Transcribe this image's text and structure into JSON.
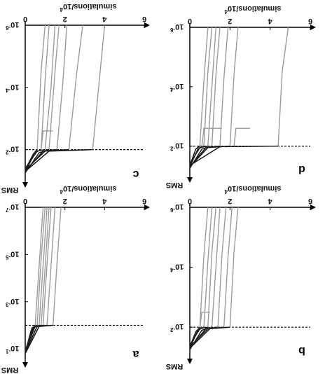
{
  "chart_data": [
    {
      "panel": "c",
      "type": "line",
      "xlabel": "simulations/10",
      "xlabel_exp": "4",
      "ylabel": "RMS",
      "xlim": [
        0,
        6
      ],
      "ylim": [
        1,
        6
      ],
      "x_ticks": [
        {
          "v": 0,
          "label": "0"
        },
        {
          "v": 2,
          "label": "2"
        },
        {
          "v": 4,
          "label": "4"
        },
        {
          "v": 6,
          "label": "6"
        }
      ],
      "y_ticks": [
        {
          "v": 6,
          "base": "10",
          "exp": "-6"
        },
        {
          "v": 4,
          "base": "10",
          "exp": "-4"
        },
        {
          "v": 2,
          "base": "10",
          "exp": "-2"
        }
      ],
      "threshold": 2,
      "series": [
        {
          "color": "#9a9a9a",
          "points": [
            [
              0,
              1.35
            ],
            [
              0.4,
              1.85
            ],
            [
              0.6,
              2.0
            ],
            [
              0.8,
              4.5
            ],
            [
              1.0,
              6.0
            ]
          ]
        },
        {
          "color": "#9a9a9a",
          "points": [
            [
              0,
              1.3
            ],
            [
              0.5,
              1.9
            ],
            [
              0.8,
              2.0
            ],
            [
              1.0,
              4.2
            ],
            [
              1.2,
              6.0
            ]
          ]
        },
        {
          "color": "#9a9a9a",
          "points": [
            [
              0,
              1.4
            ],
            [
              0.6,
              1.95
            ],
            [
              1.0,
              2.0
            ],
            [
              1.3,
              4.0
            ],
            [
              1.5,
              6.0
            ]
          ]
        },
        {
          "color": "#9a9a9a",
          "points": [
            [
              0,
              1.25
            ],
            [
              0.7,
              1.9
            ],
            [
              1.2,
              2.0
            ],
            [
              1.5,
              4.5
            ],
            [
              1.7,
              6.0
            ]
          ]
        },
        {
          "color": "#9a9a9a",
          "points": [
            [
              0,
              1.3
            ],
            [
              0.9,
              1.95
            ],
            [
              1.6,
              2.0
            ],
            [
              1.9,
              4.2
            ],
            [
              2.1,
              6.0
            ]
          ]
        },
        {
          "color": "#9a9a9a",
          "points": [
            [
              0,
              1.35
            ],
            [
              1.0,
              1.95
            ],
            [
              2.2,
              2.0
            ],
            [
              2.6,
              4.5
            ],
            [
              2.9,
              6.0
            ]
          ]
        },
        {
          "color": "#9a9a9a",
          "points": [
            [
              0,
              1.3
            ],
            [
              1.2,
              1.95
            ],
            [
              3.4,
              2.0
            ],
            [
              3.7,
              4.0
            ],
            [
              4.0,
              6.0
            ]
          ]
        },
        {
          "color": "#9a9a9a",
          "points": [
            [
              0.8,
              2.0
            ],
            [
              0.9,
              2.6
            ],
            [
              1.4,
              2.6
            ]
          ]
        }
      ]
    },
    {
      "panel": "d",
      "type": "line",
      "xlabel": "simulations/10",
      "xlabel_exp": "4",
      "ylabel": "RMS",
      "xlim": [
        0,
        6
      ],
      "ylim": [
        1,
        6
      ],
      "x_ticks": [
        {
          "v": 0,
          "label": "0"
        },
        {
          "v": 2,
          "label": "2"
        },
        {
          "v": 4,
          "label": "4"
        },
        {
          "v": 6,
          "label": "6"
        }
      ],
      "y_ticks": [
        {
          "v": 6,
          "base": "10",
          "exp": "-6"
        },
        {
          "v": 4,
          "base": "10",
          "exp": "-4"
        },
        {
          "v": 2,
          "base": "10",
          "exp": "-2"
        }
      ],
      "threshold": 2,
      "series": [
        {
          "color": "#9a9a9a",
          "points": [
            [
              0,
              1.35
            ],
            [
              0.3,
              1.9
            ],
            [
              0.5,
              2.0
            ],
            [
              0.7,
              4.2
            ],
            [
              0.9,
              6.0
            ]
          ]
        },
        {
          "color": "#9a9a9a",
          "points": [
            [
              0,
              1.3
            ],
            [
              0.4,
              1.9
            ],
            [
              0.7,
              2.0
            ],
            [
              0.9,
              4.5
            ],
            [
              1.1,
              6.0
            ]
          ]
        },
        {
          "color": "#9a9a9a",
          "points": [
            [
              0,
              1.4
            ],
            [
              0.5,
              1.95
            ],
            [
              0.9,
              2.0
            ],
            [
              1.1,
              4.0
            ],
            [
              1.3,
              6.0
            ]
          ]
        },
        {
          "color": "#9a9a9a",
          "points": [
            [
              0,
              1.25
            ],
            [
              0.6,
              1.9
            ],
            [
              1.1,
              2.0
            ],
            [
              1.3,
              4.4
            ],
            [
              1.5,
              6.0
            ]
          ]
        },
        {
          "color": "#9a9a9a",
          "points": [
            [
              0,
              1.3
            ],
            [
              0.8,
              1.95
            ],
            [
              1.5,
              2.0
            ],
            [
              1.7,
              4.3
            ],
            [
              1.9,
              6.0
            ]
          ]
        },
        {
          "color": "#9a9a9a",
          "points": [
            [
              0,
              1.3
            ],
            [
              0.9,
              1.95
            ],
            [
              2.0,
              2.0
            ],
            [
              2.2,
              4.4
            ],
            [
              2.4,
              6.0
            ]
          ]
        },
        {
          "color": "#9a9a9a",
          "points": [
            [
              0,
              1.35
            ],
            [
              1.5,
              1.98
            ],
            [
              4.4,
              2.0
            ],
            [
              4.6,
              4.5
            ],
            [
              4.9,
              6.0
            ]
          ]
        },
        {
          "color": "#9a9a9a",
          "points": [
            [
              0.6,
              2.0
            ],
            [
              0.7,
              2.6
            ],
            [
              1.6,
              2.6
            ]
          ]
        },
        {
          "color": "#9a9a9a",
          "points": [
            [
              2.2,
              2.0
            ],
            [
              2.3,
              2.6
            ],
            [
              3.0,
              2.6
            ]
          ]
        }
      ]
    },
    {
      "panel": "a",
      "type": "line",
      "xlabel": "simulations/10",
      "xlabel_exp": "4",
      "ylabel": "RMS",
      "xlim": [
        0,
        6
      ],
      "ylim": [
        0.5,
        7
      ],
      "x_ticks": [
        {
          "v": 0,
          "label": "0"
        },
        {
          "v": 2,
          "label": "2"
        },
        {
          "v": 4,
          "label": "4"
        },
        {
          "v": 6,
          "label": "6"
        }
      ],
      "y_ticks": [
        {
          "v": 7,
          "base": "10",
          "exp": "-7"
        },
        {
          "v": 5,
          "base": "10",
          "exp": "-5"
        },
        {
          "v": 3,
          "base": "10",
          "exp": "-3"
        },
        {
          "v": 1,
          "base": "10",
          "exp": "-1"
        }
      ],
      "threshold": 2,
      "series": [
        {
          "color": "#9a9a9a",
          "points": [
            [
              0,
              0.8
            ],
            [
              0.3,
              1.8
            ],
            [
              0.5,
              2.0
            ],
            [
              0.7,
              4.5
            ],
            [
              0.9,
              7.0
            ]
          ]
        },
        {
          "color": "#9a9a9a",
          "points": [
            [
              0,
              0.9
            ],
            [
              0.35,
              1.9
            ],
            [
              0.6,
              2.0
            ],
            [
              0.8,
              4.8
            ],
            [
              1.0,
              7.0
            ]
          ]
        },
        {
          "color": "#9a9a9a",
          "points": [
            [
              0,
              0.85
            ],
            [
              0.4,
              1.9
            ],
            [
              0.7,
              2.0
            ],
            [
              0.9,
              4.5
            ],
            [
              1.1,
              7.0
            ]
          ]
        },
        {
          "color": "#9a9a9a",
          "points": [
            [
              0,
              0.8
            ],
            [
              0.45,
              1.95
            ],
            [
              0.8,
              2.0
            ],
            [
              1.0,
              4.4
            ],
            [
              1.2,
              7.0
            ]
          ]
        },
        {
          "color": "#9a9a9a",
          "points": [
            [
              0,
              0.9
            ],
            [
              0.5,
              1.95
            ],
            [
              0.9,
              2.0
            ],
            [
              1.1,
              4.6
            ],
            [
              1.3,
              7.0
            ]
          ]
        },
        {
          "color": "#9a9a9a",
          "points": [
            [
              0,
              0.85
            ],
            [
              0.6,
              1.95
            ],
            [
              1.1,
              2.0
            ],
            [
              1.3,
              4.5
            ],
            [
              1.5,
              7.0
            ]
          ]
        },
        {
          "color": "#9a9a9a",
          "points": [
            [
              0,
              0.8
            ],
            [
              0.7,
              1.95
            ],
            [
              1.4,
              2.0
            ],
            [
              1.6,
              4.6
            ],
            [
              1.8,
              7.0
            ]
          ]
        }
      ]
    },
    {
      "panel": "b",
      "type": "line",
      "xlabel": "simulations/10",
      "xlabel_exp": "4",
      "ylabel": "RMS",
      "xlim": [
        0,
        6
      ],
      "ylim": [
        1,
        6
      ],
      "x_ticks": [
        {
          "v": 0,
          "label": "0"
        },
        {
          "v": 2,
          "label": "2"
        },
        {
          "v": 4,
          "label": "4"
        },
        {
          "v": 6,
          "label": "6"
        }
      ],
      "y_ticks": [
        {
          "v": 6,
          "base": "10",
          "exp": "-6"
        },
        {
          "v": 4,
          "base": "10",
          "exp": "-4"
        },
        {
          "v": 2,
          "base": "10",
          "exp": "-2"
        }
      ],
      "threshold": 2,
      "series": [
        {
          "color": "#9a9a9a",
          "points": [
            [
              0,
              1.35
            ],
            [
              0.3,
              1.85
            ],
            [
              0.5,
              2.0
            ],
            [
              0.7,
              4.4
            ],
            [
              0.9,
              6.0
            ]
          ]
        },
        {
          "color": "#9a9a9a",
          "points": [
            [
              0,
              1.3
            ],
            [
              0.4,
              1.9
            ],
            [
              0.7,
              2.0
            ],
            [
              0.9,
              4.2
            ],
            [
              1.1,
              6.0
            ]
          ]
        },
        {
          "color": "#9a9a9a",
          "points": [
            [
              0,
              1.4
            ],
            [
              0.5,
              1.95
            ],
            [
              0.9,
              2.0
            ],
            [
              1.1,
              4.5
            ],
            [
              1.3,
              6.0
            ]
          ]
        },
        {
          "color": "#9a9a9a",
          "points": [
            [
              0,
              1.25
            ],
            [
              0.6,
              1.9
            ],
            [
              1.1,
              2.0
            ],
            [
              1.3,
              4.0
            ],
            [
              1.5,
              6.0
            ]
          ]
        },
        {
          "color": "#9a9a9a",
          "points": [
            [
              0,
              1.3
            ],
            [
              0.8,
              1.95
            ],
            [
              1.4,
              2.0
            ],
            [
              1.6,
              4.4
            ],
            [
              1.8,
              6.0
            ]
          ]
        },
        {
          "color": "#9a9a9a",
          "points": [
            [
              0,
              1.35
            ],
            [
              0.9,
              1.95
            ],
            [
              1.7,
              2.0
            ],
            [
              1.9,
              4.3
            ],
            [
              2.1,
              6.0
            ]
          ]
        },
        {
          "color": "#9a9a9a",
          "points": [
            [
              0,
              1.3
            ],
            [
              1.0,
              1.95
            ],
            [
              2.0,
              2.0
            ],
            [
              2.2,
              4.5
            ],
            [
              2.4,
              6.0
            ]
          ]
        },
        {
          "color": "#9a9a9a",
          "points": [
            [
              0.5,
              2.0
            ],
            [
              0.6,
              2.5
            ],
            [
              1.0,
              2.5
            ]
          ]
        }
      ]
    }
  ]
}
